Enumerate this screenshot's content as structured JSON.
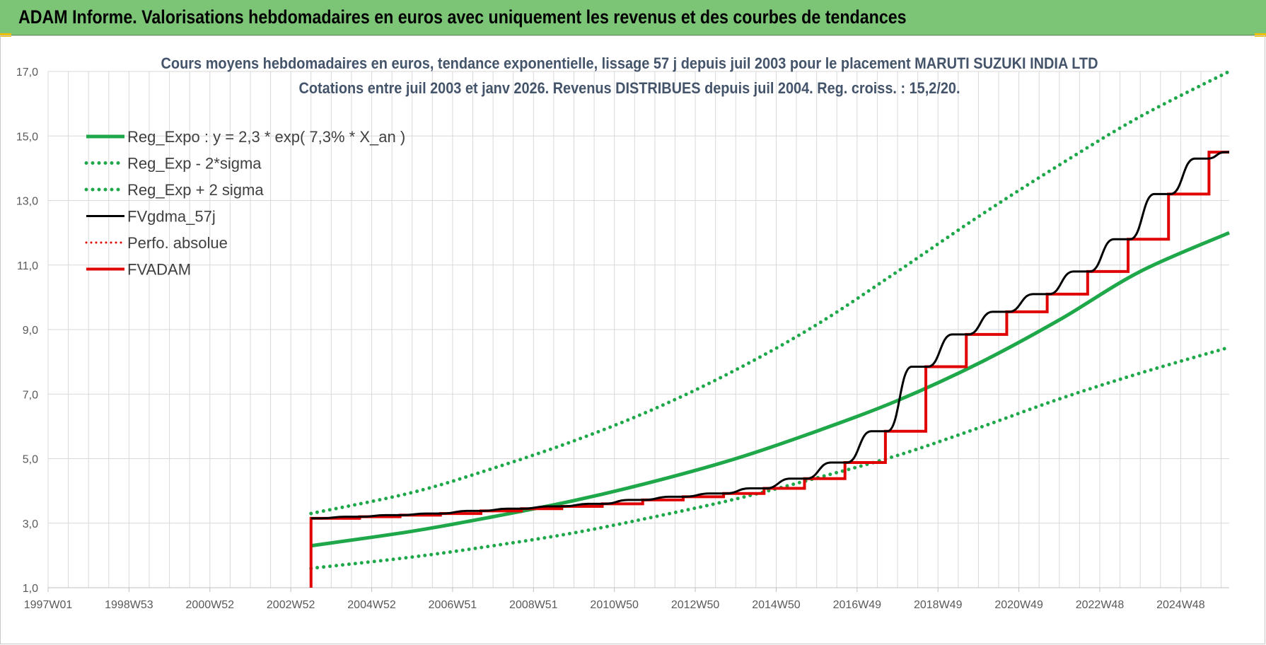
{
  "header": {
    "title": "ADAM Informe. Valorisations hebdomadaires en euros avec uniquement les revenus et des courbes de tendances"
  },
  "colors": {
    "header_bg": "#7cc576",
    "green": "#1fa84a",
    "red": "#e00000",
    "black": "#000000",
    "grid": "#d9d9d9"
  },
  "chart_data": {
    "type": "line",
    "title": "Cours moyens hebdomadaires en euros, tendance exponentielle, lissage 57 j depuis juil 2003 pour le placement MARUTI SUZUKI INDIA LTD",
    "subtitle": "Cotations entre juil 2003 et janv 2026. Revenus DISTRIBUES depuis juil 2004. Reg. croiss. : 15,2/20.",
    "xlabel": "",
    "ylabel": "",
    "x_tick_labels": [
      "1997W01",
      "1998W53",
      "2000W52",
      "2002W52",
      "2004W52",
      "2006W51",
      "2008W51",
      "2010W50",
      "2012W50",
      "2014W50",
      "2016W49",
      "2018W49",
      "2020W49",
      "2022W48",
      "2024W48"
    ],
    "xlim": [
      1997.0,
      2026.2
    ],
    "ylim": [
      1.0,
      17.0
    ],
    "y_ticks": [
      "1,0",
      "3,0",
      "5,0",
      "7,0",
      "9,0",
      "11,0",
      "13,0",
      "15,0",
      "17,0"
    ],
    "y_tick_values": [
      1,
      3,
      5,
      7,
      9,
      11,
      13,
      15,
      17
    ],
    "grid": true,
    "legend_position": "top-left",
    "series": [
      {
        "name": "Reg_Expo : y = 2,3 * exp( 7,3% *  X_an )",
        "style": "solid-green",
        "x": [
          2003.5,
          2006,
          2008,
          2010,
          2012,
          2014,
          2016,
          2018,
          2020,
          2022,
          2024,
          2026.2
        ],
        "y": [
          2.3,
          2.75,
          3.2,
          3.7,
          4.3,
          5.0,
          5.85,
          6.8,
          7.95,
          9.3,
          10.8,
          12.0
        ]
      },
      {
        "name": "Reg_Exp - 2*sigma",
        "style": "dotted-green",
        "x": [
          2003.5,
          2006,
          2008,
          2010,
          2012,
          2014,
          2016,
          2018,
          2020,
          2022,
          2024,
          2026.2
        ],
        "y": [
          1.6,
          1.95,
          2.3,
          2.7,
          3.2,
          3.75,
          4.4,
          5.1,
          5.95,
          6.85,
          7.65,
          8.45
        ]
      },
      {
        "name": "Reg_Exp + 2 sigma",
        "style": "dotted-green",
        "x": [
          2003.5,
          2006,
          2008,
          2010,
          2012,
          2014,
          2016,
          2018,
          2020,
          2022,
          2024,
          2026.2
        ],
        "y": [
          3.3,
          3.95,
          4.7,
          5.55,
          6.55,
          7.75,
          9.15,
          10.8,
          12.5,
          14.1,
          15.6,
          17.0
        ]
      },
      {
        "name": "FVgdma_57j",
        "style": "solid-black",
        "x": [
          2003.5,
          2004.5,
          2005.5,
          2006.5,
          2007.5,
          2008.5,
          2009.5,
          2010.5,
          2011.5,
          2012.5,
          2013.5,
          2014.5,
          2015.5,
          2016.5,
          2017.5,
          2018.5,
          2019.5,
          2020.5,
          2021.5,
          2022.5,
          2023.5,
          2024.5,
          2025.5,
          2026.2
        ],
        "y": [
          3.15,
          3.2,
          3.25,
          3.3,
          3.38,
          3.45,
          3.52,
          3.6,
          3.72,
          3.82,
          3.92,
          4.08,
          4.38,
          4.88,
          5.85,
          7.85,
          8.85,
          9.55,
          10.1,
          10.8,
          11.8,
          13.2,
          14.3,
          14.5
        ]
      },
      {
        "name": "Perfo. absolue",
        "style": "dotted-red",
        "x": [],
        "y": []
      },
      {
        "name": "FVADAM",
        "style": "step-red",
        "x": [
          2003.5,
          2004.7,
          2005.7,
          2006.7,
          2007.7,
          2008.7,
          2009.7,
          2010.7,
          2011.7,
          2012.7,
          2013.7,
          2014.7,
          2015.7,
          2016.7,
          2017.7,
          2018.7,
          2019.7,
          2020.7,
          2021.7,
          2022.7,
          2023.7,
          2024.7,
          2025.7,
          2026.2
        ],
        "y": [
          3.15,
          3.2,
          3.25,
          3.3,
          3.38,
          3.45,
          3.52,
          3.6,
          3.72,
          3.82,
          3.92,
          4.08,
          4.38,
          4.88,
          5.85,
          7.85,
          8.85,
          9.55,
          10.1,
          10.8,
          11.8,
          13.2,
          14.5,
          14.5
        ],
        "start_drop_to": 1.0
      }
    ]
  }
}
